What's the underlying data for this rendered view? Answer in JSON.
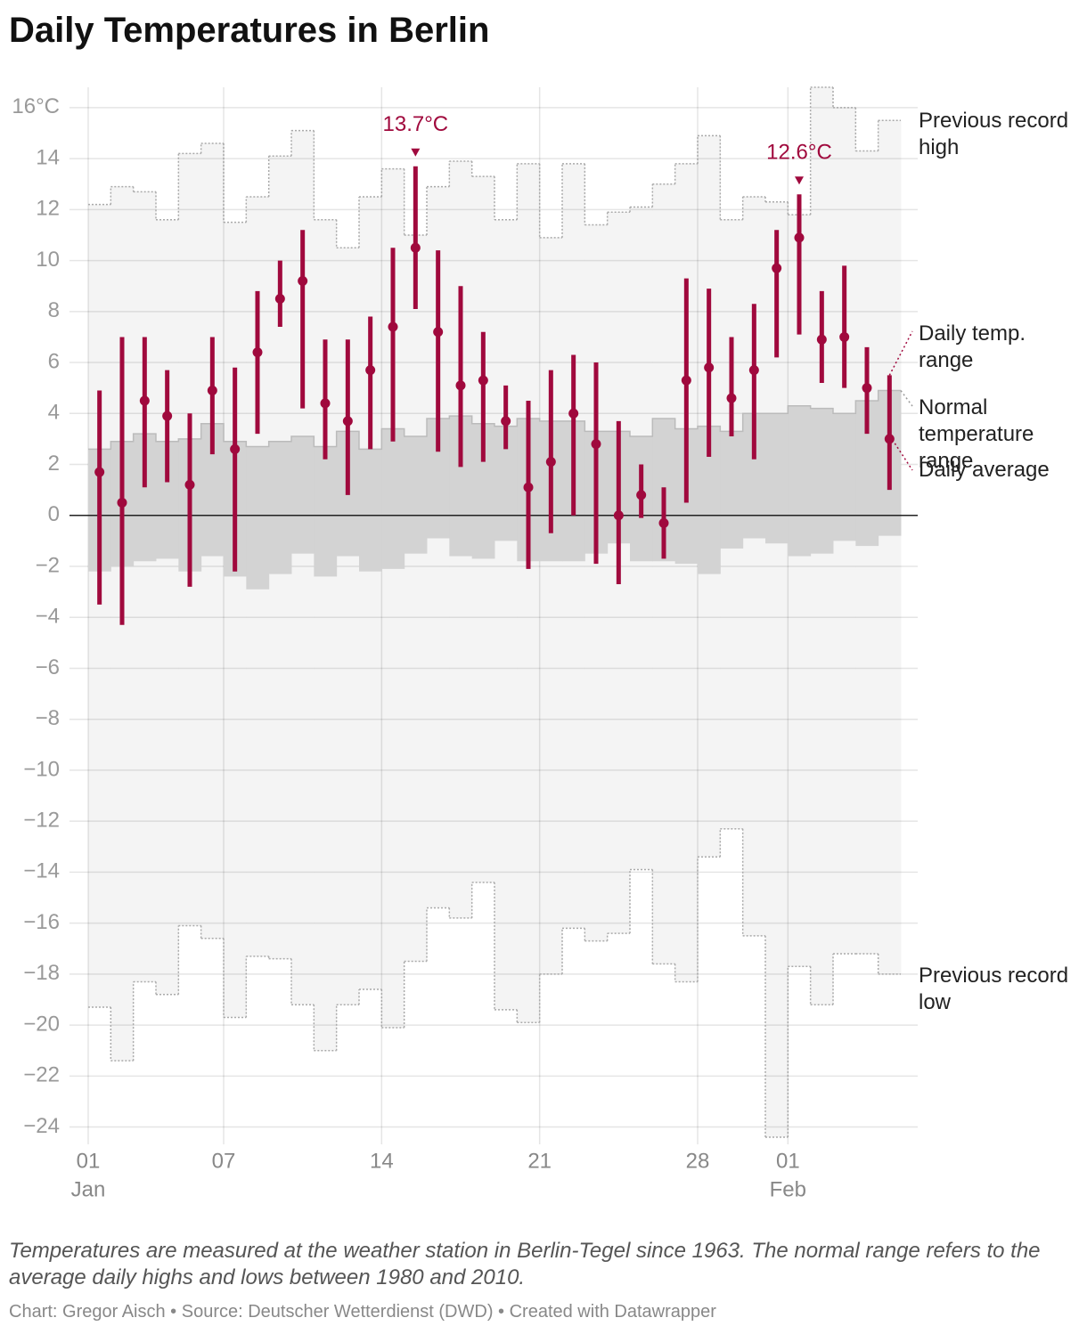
{
  "chart_data": {
    "type": "range",
    "title": "Daily Temperatures in Berlin",
    "description": "Temperatures are measured at the weather station in Berlin-Tegel since 1963. The normal range refers to the average daily highs and lows between 1980 and 2010.",
    "credit": "Chart: Gregor Aisch • Source: Deutscher Wetterdienst (DWD) • Created with Datawrapper",
    "xlim": [
      0,
      36
    ],
    "xticks": [
      {
        "value": 0,
        "label": "01"
      },
      {
        "value": 6,
        "label": "07"
      },
      {
        "value": 13,
        "label": "14"
      },
      {
        "value": 20,
        "label": "21"
      },
      {
        "value": 27,
        "label": "28"
      },
      {
        "value": 31,
        "label": "01"
      }
    ],
    "month_labels": [
      {
        "value": 0,
        "label": "Jan"
      },
      {
        "value": 31,
        "label": "Feb"
      }
    ],
    "ylim": [
      -24.4,
      16.8
    ],
    "yticks": [
      {
        "value": 16,
        "label": "16°C"
      },
      14,
      12,
      10,
      8,
      6,
      4,
      2,
      0,
      {
        "value": -2,
        "label": "−2"
      },
      {
        "value": -4,
        "label": "−4"
      },
      {
        "value": -6,
        "label": "−6"
      },
      {
        "value": -8,
        "label": "−8"
      },
      {
        "value": -10,
        "label": "−10"
      },
      {
        "value": -12,
        "label": "−12"
      },
      {
        "value": -14,
        "label": "−14"
      },
      {
        "value": -16,
        "label": "−16"
      },
      {
        "value": -18,
        "label": "−18"
      },
      {
        "value": -20,
        "label": "−20"
      },
      {
        "value": -22,
        "label": "−22"
      },
      {
        "value": -24,
        "label": "−24"
      }
    ],
    "grid": true,
    "series": [
      {
        "name": "Daily temp. range",
        "color": "#a0093d",
        "high": [
          4.9,
          7.0,
          7.0,
          5.7,
          4.0,
          7.0,
          5.8,
          8.8,
          10.0,
          11.2,
          6.9,
          6.9,
          7.8,
          10.5,
          13.7,
          10.4,
          9.0,
          7.2,
          5.1,
          4.5,
          5.7,
          6.3,
          6.0,
          3.7,
          2.0,
          1.1,
          9.3,
          8.9,
          7.0,
          8.3,
          11.2,
          12.6,
          8.8,
          9.8,
          6.6,
          5.5
        ],
        "low": [
          -3.5,
          -4.3,
          1.1,
          1.3,
          -2.8,
          2.4,
          -2.2,
          3.2,
          7.4,
          4.2,
          2.2,
          0.8,
          2.6,
          2.9,
          8.1,
          2.5,
          1.9,
          2.1,
          2.6,
          -2.1,
          -0.7,
          0.0,
          -1.9,
          -2.7,
          -0.1,
          -1.7,
          0.5,
          2.3,
          3.1,
          2.2,
          6.2,
          7.1,
          5.2,
          5.0,
          3.2,
          1.0
        ],
        "value_labels": [
          null,
          null,
          null,
          null,
          null,
          null,
          null,
          null,
          null,
          null,
          null,
          null,
          null,
          null,
          "13.7°C",
          null,
          null,
          null,
          null,
          null,
          null,
          null,
          null,
          null,
          null,
          null,
          null,
          null,
          null,
          null,
          null,
          "12.6°C",
          null,
          null,
          null,
          null
        ]
      },
      {
        "name": "Daily average",
        "color": "#a0093d",
        "values": [
          1.7,
          0.5,
          4.5,
          3.9,
          1.2,
          4.9,
          2.6,
          6.4,
          8.5,
          9.2,
          4.4,
          3.7,
          5.7,
          7.4,
          10.5,
          7.2,
          5.1,
          5.3,
          3.7,
          1.1,
          2.1,
          4.0,
          2.8,
          0.0,
          0.8,
          -0.3,
          5.3,
          5.8,
          4.6,
          5.7,
          9.7,
          10.9,
          6.9,
          7.0,
          5.0,
          3.0
        ]
      },
      {
        "name": "Normal temperature range",
        "color": "#d3d3d3",
        "high": [
          2.6,
          2.9,
          3.2,
          2.9,
          3.0,
          3.6,
          2.9,
          2.7,
          2.9,
          3.1,
          2.7,
          3.3,
          2.6,
          3.4,
          3.1,
          3.8,
          3.9,
          3.6,
          3.5,
          3.8,
          3.7,
          3.7,
          3.3,
          3.3,
          3.1,
          3.8,
          3.4,
          3.5,
          3.3,
          4.0,
          4.0,
          4.3,
          4.2,
          4.0,
          4.5,
          4.9
        ],
        "low": [
          -2.2,
          -2.0,
          -1.8,
          -1.7,
          -2.2,
          -1.6,
          -2.4,
          -2.9,
          -2.3,
          -1.5,
          -2.4,
          -1.6,
          -2.2,
          -2.1,
          -1.5,
          -0.9,
          -1.6,
          -1.7,
          -1.0,
          -1.8,
          -1.8,
          -1.8,
          -1.5,
          -1.1,
          -1.8,
          -1.8,
          -1.9,
          -2.3,
          -1.3,
          -0.9,
          -1.1,
          -1.6,
          -1.5,
          -1.0,
          -1.2,
          -0.8
        ]
      },
      {
        "name": "Previous record high",
        "color": "#f4f4f4",
        "values": [
          12.2,
          12.9,
          12.7,
          11.6,
          14.2,
          14.6,
          11.5,
          12.5,
          14.1,
          15.1,
          11.6,
          10.5,
          12.5,
          13.6,
          11.0,
          12.9,
          13.9,
          13.3,
          11.6,
          13.8,
          10.9,
          13.8,
          11.4,
          11.9,
          12.1,
          13.0,
          13.8,
          14.9,
          11.6,
          12.5,
          12.3,
          11.8,
          16.8,
          16.0,
          14.3,
          15.5
        ]
      },
      {
        "name": "Previous record low",
        "color": "#f4f4f4",
        "values": [
          -19.3,
          -21.4,
          -18.3,
          -18.8,
          -16.1,
          -16.6,
          -19.7,
          -17.3,
          -17.4,
          -19.2,
          -21.0,
          -19.2,
          -18.6,
          -20.1,
          -17.5,
          -15.4,
          -15.8,
          -14.4,
          -19.4,
          -19.9,
          -18.0,
          -16.2,
          -16.7,
          -16.4,
          -13.9,
          -17.6,
          -18.3,
          -13.4,
          -12.3,
          -16.5,
          -24.4,
          -17.7,
          -19.2,
          -17.2,
          -17.2,
          -18.0
        ]
      }
    ]
  }
}
